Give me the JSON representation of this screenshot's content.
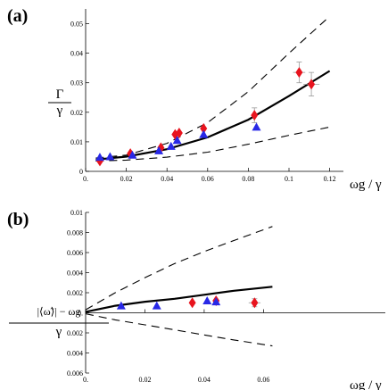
{
  "chart_data": [
    {
      "type": "scatter",
      "panel_label": "(a)",
      "xlabel": "ωg / γ",
      "ylabel_num": "Γ",
      "ylabel_den": "γ",
      "xlim": [
        0,
        0.125
      ],
      "ylim": [
        0,
        0.055
      ],
      "xticks": [
        0.0,
        0.02,
        0.04,
        0.06,
        0.08,
        0.1,
        0.12
      ],
      "xtick_labels": [
        "0.",
        "0.02",
        "0.04",
        "0.06",
        "0.08",
        "0.1",
        "0.12"
      ],
      "yticks": [
        0,
        0.01,
        0.02,
        0.03,
        0.04,
        0.05
      ],
      "ytick_labels": [
        "0",
        "0.01",
        "0.02",
        "0.03",
        "0.04",
        "0.05"
      ],
      "curves": [
        {
          "style": "solid",
          "points": [
            [
              0.005,
              0.004
            ],
            [
              0.02,
              0.005
            ],
            [
              0.04,
              0.0075
            ],
            [
              0.06,
              0.0115
            ],
            [
              0.08,
              0.0175
            ],
            [
              0.1,
              0.0255
            ],
            [
              0.12,
              0.034
            ]
          ]
        },
        {
          "style": "dashed",
          "points": [
            [
              0.005,
              0.0045
            ],
            [
              0.02,
              0.0055
            ],
            [
              0.04,
              0.0095
            ],
            [
              0.06,
              0.0165
            ],
            [
              0.08,
              0.027
            ],
            [
              0.1,
              0.04
            ],
            [
              0.12,
              0.0525
            ]
          ]
        },
        {
          "style": "dashed",
          "points": [
            [
              0.005,
              0.0035
            ],
            [
              0.02,
              0.0038
            ],
            [
              0.04,
              0.0048
            ],
            [
              0.06,
              0.0065
            ],
            [
              0.08,
              0.0092
            ],
            [
              0.1,
              0.0122
            ],
            [
              0.12,
              0.015
            ]
          ]
        }
      ],
      "series": [
        {
          "marker": "diamond",
          "color": "#e8141e",
          "points": [
            [
              0.007,
              0.0035
            ],
            [
              0.022,
              0.006
            ],
            [
              0.037,
              0.008
            ],
            [
              0.044,
              0.0125
            ],
            [
              0.046,
              0.013
            ],
            [
              0.058,
              0.0145
            ],
            [
              0.083,
              0.019
            ],
            [
              0.105,
              0.0335
            ],
            [
              0.111,
              0.0295
            ]
          ],
          "yerr": [
            0,
            0,
            0,
            0,
            0,
            0,
            0.0025,
            0.0035,
            0.004
          ],
          "xerr": [
            0,
            0,
            0,
            0,
            0,
            0,
            0,
            0.003,
            0.004
          ]
        },
        {
          "marker": "triangle",
          "color": "#2828e6",
          "points": [
            [
              0.007,
              0.0048
            ],
            [
              0.012,
              0.005
            ],
            [
              0.023,
              0.0055
            ],
            [
              0.036,
              0.007
            ],
            [
              0.042,
              0.0085
            ],
            [
              0.045,
              0.0105
            ],
            [
              0.058,
              0.0125
            ],
            [
              0.084,
              0.015
            ]
          ]
        }
      ]
    },
    {
      "type": "scatter",
      "panel_label": "(b)",
      "xlabel": "ωg / γ",
      "ylabel_num": "|⟨ω̃⟩| − ωg",
      "ylabel_den": "γ",
      "xlim": [
        0,
        0.065
      ],
      "ylim": [
        -0.006,
        0.01
      ],
      "xticks": [
        0.0,
        0.02,
        0.04,
        0.06
      ],
      "xtick_labels": [
        "0.",
        "0.02",
        "0.04",
        "0.06"
      ],
      "yticks": [
        0.01,
        0.008,
        0.006,
        0.004,
        0.002,
        0,
        -0.002,
        -0.004,
        -0.006
      ],
      "ytick_labels": [
        "0.01",
        "0.008",
        "0.006",
        "0.004",
        "0.002",
        "0.",
        "0.002",
        "0.004",
        "0.006"
      ],
      "curves": [
        {
          "style": "solid",
          "points": [
            [
              0.0,
              0.0001
            ],
            [
              0.01,
              0.0007
            ],
            [
              0.02,
              0.0011
            ],
            [
              0.03,
              0.0014
            ],
            [
              0.04,
              0.0018
            ],
            [
              0.05,
              0.0022
            ],
            [
              0.063,
              0.0026
            ]
          ]
        },
        {
          "style": "dashed",
          "points": [
            [
              0.0,
              0.0003
            ],
            [
              0.01,
              0.002
            ],
            [
              0.02,
              0.0035
            ],
            [
              0.03,
              0.0049
            ],
            [
              0.04,
              0.0061
            ],
            [
              0.05,
              0.0072
            ],
            [
              0.063,
              0.0086
            ]
          ]
        },
        {
          "style": "dashed",
          "points": [
            [
              0.0,
              -0.0001
            ],
            [
              0.01,
              -0.0007
            ],
            [
              0.02,
              -0.0012
            ],
            [
              0.03,
              -0.0017
            ],
            [
              0.04,
              -0.0022
            ],
            [
              0.05,
              -0.0027
            ],
            [
              0.063,
              -0.0033
            ]
          ]
        }
      ],
      "series": [
        {
          "marker": "diamond",
          "color": "#e8141e",
          "points": [
            [
              0.036,
              0.001
            ],
            [
              0.044,
              0.0012
            ],
            [
              0.057,
              0.001
            ]
          ],
          "xerr": [
            0,
            0,
            0.002
          ],
          "yerr": [
            0,
            0,
            0.0004
          ]
        },
        {
          "marker": "triangle",
          "color": "#2828e6",
          "points": [
            [
              0.012,
              0.0007
            ],
            [
              0.024,
              0.0007
            ],
            [
              0.041,
              0.0012
            ],
            [
              0.044,
              0.0011
            ]
          ]
        }
      ]
    }
  ]
}
